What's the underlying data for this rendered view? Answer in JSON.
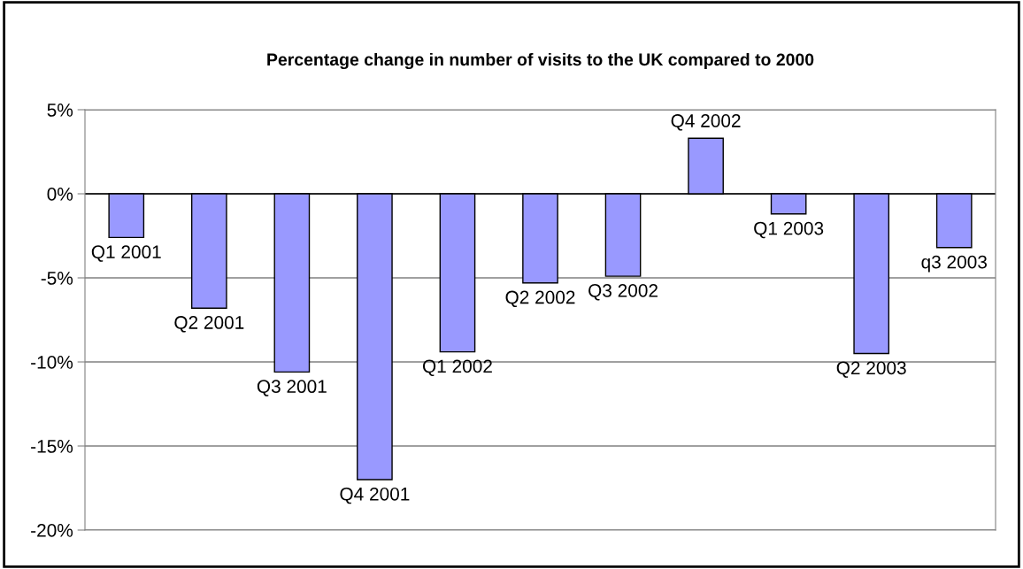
{
  "chart_data": {
    "type": "bar",
    "title": "Percentage change in number of visits to the UK compared to 2000",
    "categories": [
      "Q1 2001",
      "Q2 2001",
      "Q3 2001",
      "Q4 2001",
      "Q1 2002",
      "Q2 2002",
      "Q3 2002",
      "Q4 2002",
      "Q1 2003",
      "Q2 2003",
      "q3 2003"
    ],
    "values": [
      -2.6,
      -6.8,
      -10.6,
      -17.0,
      -9.4,
      -5.3,
      -4.9,
      3.3,
      -1.2,
      -9.5,
      -3.2
    ],
    "color": "#9999ff",
    "ylim": [
      -20,
      5
    ],
    "yticks": [
      {
        "value": -20,
        "label": "-20%"
      },
      {
        "value": -15,
        "label": "-15%"
      },
      {
        "value": -10,
        "label": "-10%"
      },
      {
        "value": -5,
        "label": "-5%"
      },
      {
        "value": 0,
        "label": "0%"
      },
      {
        "value": 5,
        "label": "5%"
      }
    ],
    "grid": "y",
    "tick_labels": "y"
  }
}
